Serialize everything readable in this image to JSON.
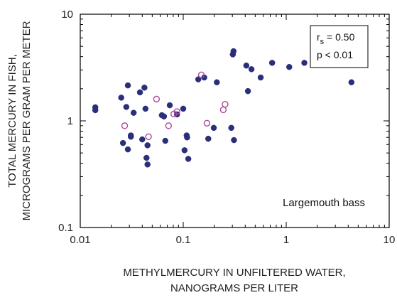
{
  "chart_data": {
    "type": "scatter",
    "xscale": "log",
    "yscale": "log",
    "xlim": [
      0.01,
      10
    ],
    "ylim": [
      0.1,
      10
    ],
    "grid": false,
    "xlabel_lines": [
      "METHYLMERCURY IN UNFILTERED WATER,",
      "NANOGRAMS PER LITER"
    ],
    "ylabel_lines": [
      "TOTAL MERCURY IN FISH,",
      "MICROGRAMS PER GRAM PER METER"
    ],
    "x_ticks": [
      0.01,
      0.1,
      1,
      10
    ],
    "x_tick_labels": [
      "0.01",
      "0.1",
      "1",
      "10"
    ],
    "y_ticks": [
      0.1,
      1,
      10
    ],
    "y_tick_labels": [
      "0.1",
      "1",
      "10"
    ],
    "series_label": "Largemouth bass",
    "annotation": {
      "r_prefix": "r",
      "r_sub": "s",
      "r_value": " = 0.50",
      "p_text": "p < 0.01"
    },
    "colors": {
      "filled": "#2b2f7a",
      "open": "#b0479b",
      "axis": "#000000"
    },
    "series": [
      {
        "marker": "filled",
        "x": [
          0.014,
          0.014,
          0.025,
          0.026,
          0.028,
          0.029,
          0.029,
          0.031,
          0.031,
          0.033,
          0.038,
          0.04,
          0.042,
          0.043,
          0.044,
          0.045,
          0.045,
          0.062,
          0.065,
          0.067,
          0.074,
          0.087,
          0.1,
          0.103,
          0.108,
          0.109,
          0.112,
          0.14,
          0.16,
          0.175,
          0.198,
          0.212,
          0.293,
          0.303,
          0.308,
          0.311,
          0.41,
          0.425,
          0.46,
          0.565,
          0.73,
          1.07,
          1.5,
          4.3
        ],
        "y": [
          1.34,
          1.26,
          1.65,
          0.62,
          1.35,
          0.54,
          2.15,
          0.73,
          0.71,
          1.19,
          1.85,
          0.67,
          2.05,
          1.3,
          0.45,
          0.59,
          0.39,
          1.13,
          1.1,
          0.65,
          1.4,
          1.15,
          1.3,
          0.53,
          0.73,
          0.7,
          0.44,
          2.45,
          2.55,
          0.68,
          0.86,
          2.3,
          0.86,
          4.2,
          4.5,
          0.66,
          3.3,
          1.9,
          3.05,
          2.55,
          3.5,
          3.2,
          3.5,
          2.3
        ]
      },
      {
        "marker": "open",
        "x": [
          0.027,
          0.046,
          0.055,
          0.072,
          0.081,
          0.087,
          0.15,
          0.17,
          0.245,
          0.255
        ],
        "y": [
          0.9,
          0.71,
          1.6,
          0.9,
          1.16,
          1.22,
          2.7,
          0.95,
          1.27,
          1.43
        ]
      }
    ]
  }
}
